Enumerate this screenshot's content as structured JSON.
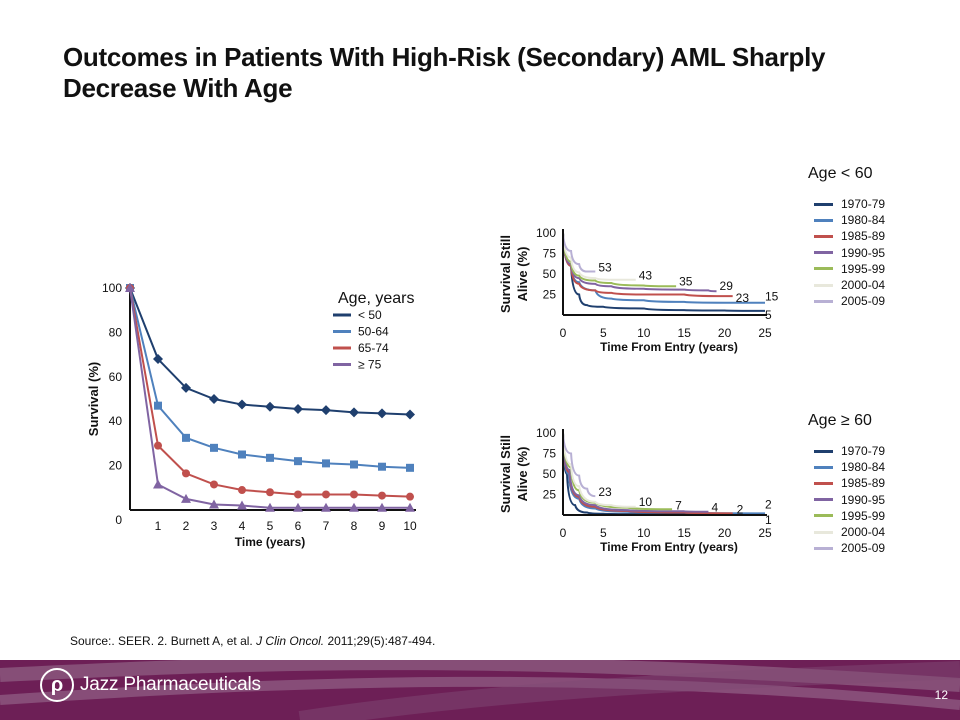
{
  "title": "Outcomes in Patients With High-Risk (Secondary) AML Sharply Decrease With Age",
  "source_prefix": "Source:. SEER. 2. Burnett A, et al. ",
  "source_journal": "J Clin Oncol.",
  "source_suffix": " 2011;29(5):487-494.",
  "footer": {
    "company": "Jazz Pharmaceuticals",
    "page_number": "12",
    "brand_color": "#6d1f56"
  },
  "chart_data": [
    {
      "id": "by-age",
      "type": "line",
      "title": "",
      "xlabel": "Time (years)",
      "ylabel": "Survival (%)",
      "legend_title": "Age, years",
      "legend_position": "top-right",
      "x": [
        0,
        1,
        2,
        3,
        4,
        5,
        6,
        7,
        8,
        9,
        10
      ],
      "x_ticks": [
        "1",
        "2",
        "3",
        "4",
        "5",
        "6",
        "7",
        "8",
        "9",
        "10"
      ],
      "y_ticks": [
        "0",
        "20",
        "40",
        "60",
        "80",
        "100"
      ],
      "xlim": [
        0,
        10
      ],
      "ylim": [
        0,
        100
      ],
      "series": [
        {
          "name": "< 50",
          "color": "#1f3f6e",
          "marker": "diamond",
          "values": [
            100,
            68,
            55,
            50,
            47.5,
            46.5,
            45.5,
            45,
            44,
            43.5,
            43
          ]
        },
        {
          "name": "50-64",
          "color": "#4f81bd",
          "marker": "square",
          "values": [
            100,
            47,
            32.5,
            28,
            25,
            23.5,
            22,
            21,
            20.5,
            19.5,
            19
          ]
        },
        {
          "name": "65-74",
          "color": "#c0504d",
          "marker": "circle",
          "values": [
            100,
            29,
            16.5,
            11.5,
            9,
            8,
            7,
            7,
            7,
            6.5,
            6
          ]
        },
        {
          "name": "≥ 75",
          "color": "#8064a2",
          "marker": "triangle",
          "values": [
            100,
            11.5,
            5,
            2.5,
            2,
            1,
            1,
            1,
            1,
            1,
            1
          ]
        }
      ]
    },
    {
      "id": "age-under-60",
      "type": "line",
      "legend_title": "Age < 60",
      "legend_position": "right",
      "xlabel": "Time From Entry (years)",
      "ylabel": "Survival Still Alive (%)",
      "x_ticks": [
        "0",
        "5",
        "10",
        "15",
        "20",
        "25"
      ],
      "y_ticks": [
        "25",
        "50",
        "75",
        "100"
      ],
      "xlim": [
        0,
        25
      ],
      "ylim": [
        0,
        100
      ],
      "series": [
        {
          "name": "1970-79",
          "color": "#1f3f6e",
          "end_label": "5",
          "points": [
            [
              0,
              100
            ],
            [
              1,
              60
            ],
            [
              2,
              25
            ],
            [
              3,
              12
            ],
            [
              5,
              10
            ],
            [
              10,
              8
            ],
            [
              15,
              6
            ],
            [
              20,
              5.5
            ],
            [
              25,
              5
            ]
          ]
        },
        {
          "name": "1980-84",
          "color": "#4f81bd",
          "end_label": "15",
          "points": [
            [
              0,
              100
            ],
            [
              1,
              60
            ],
            [
              2,
              40
            ],
            [
              4,
              30
            ],
            [
              6,
              20
            ],
            [
              10,
              18
            ],
            [
              15,
              16
            ],
            [
              20,
              15
            ],
            [
              25,
              15
            ]
          ]
        },
        {
          "name": "1985-89",
          "color": "#c0504d",
          "end_label": "23",
          "points": [
            [
              0,
              100
            ],
            [
              1,
              60
            ],
            [
              2,
              38
            ],
            [
              4,
              30
            ],
            [
              6,
              27
            ],
            [
              10,
              25
            ],
            [
              15,
              25
            ],
            [
              20,
              23
            ],
            [
              21,
              23
            ]
          ]
        },
        {
          "name": "1990-95",
          "color": "#8064a2",
          "end_label": "29",
          "points": [
            [
              0,
              100
            ],
            [
              1,
              62
            ],
            [
              2,
              45
            ],
            [
              4,
              38
            ],
            [
              6,
              35
            ],
            [
              10,
              32
            ],
            [
              15,
              31
            ],
            [
              18,
              30
            ],
            [
              19,
              29
            ]
          ]
        },
        {
          "name": "1995-99",
          "color": "#9bbb59",
          "end_label": "35",
          "points": [
            [
              0,
              100
            ],
            [
              1,
              65
            ],
            [
              2,
              48
            ],
            [
              4,
              42
            ],
            [
              6,
              39
            ],
            [
              10,
              36
            ],
            [
              14,
              35
            ]
          ]
        },
        {
          "name": "2000-04",
          "color": "#e8e8dc",
          "end_label": "43",
          "points": [
            [
              0,
              100
            ],
            [
              1,
              70
            ],
            [
              2,
              52
            ],
            [
              4,
              45
            ],
            [
              6,
              43
            ],
            [
              9,
              43
            ]
          ]
        },
        {
          "name": "2005-09",
          "color": "#b8b0d4",
          "end_label": "53",
          "points": [
            [
              0,
              100
            ],
            [
              1,
              78
            ],
            [
              2,
              62
            ],
            [
              3,
              53
            ],
            [
              4,
              53
            ]
          ]
        }
      ]
    },
    {
      "id": "age-60-plus",
      "type": "line",
      "legend_title": "Age ≥ 60",
      "legend_position": "right",
      "xlabel": "Time From Entry (years)",
      "ylabel": "Survival Still Alive (%)",
      "x_ticks": [
        "0",
        "5",
        "10",
        "15",
        "20",
        "25"
      ],
      "y_ticks": [
        "25",
        "50",
        "75",
        "100"
      ],
      "xlim": [
        0,
        25
      ],
      "ylim": [
        0,
        100
      ],
      "series": [
        {
          "name": "1970-79",
          "color": "#1f3f6e",
          "end_label": "1",
          "points": [
            [
              0,
              100
            ],
            [
              0.5,
              50
            ],
            [
              1.5,
              12
            ],
            [
              3,
              3
            ],
            [
              5,
              1.5
            ],
            [
              10,
              1
            ],
            [
              25,
              1
            ]
          ]
        },
        {
          "name": "1980-84",
          "color": "#4f81bd",
          "end_label": "2",
          "points": [
            [
              0,
              100
            ],
            [
              0.7,
              50
            ],
            [
              2,
              20
            ],
            [
              4,
              8
            ],
            [
              8,
              4
            ],
            [
              15,
              3
            ],
            [
              25,
              2
            ]
          ]
        },
        {
          "name": "1985-89",
          "color": "#c0504d",
          "end_label": "2",
          "points": [
            [
              0,
              100
            ],
            [
              0.8,
              52
            ],
            [
              2,
              22
            ],
            [
              4,
              10
            ],
            [
              8,
              5
            ],
            [
              15,
              3
            ],
            [
              21,
              2
            ]
          ]
        },
        {
          "name": "1990-95",
          "color": "#8064a2",
          "end_label": "4",
          "points": [
            [
              0,
              100
            ],
            [
              0.8,
              55
            ],
            [
              2,
              24
            ],
            [
              4,
              12
            ],
            [
              8,
              6
            ],
            [
              15,
              4.5
            ],
            [
              18,
              4
            ]
          ]
        },
        {
          "name": "1995-99",
          "color": "#9bbb59",
          "end_label": "7",
          "points": [
            [
              0,
              100
            ],
            [
              1,
              58
            ],
            [
              2,
              30
            ],
            [
              4,
              15
            ],
            [
              8,
              9
            ],
            [
              13.5,
              7
            ]
          ]
        },
        {
          "name": "2000-04",
          "color": "#e8e8dc",
          "end_label": "10",
          "points": [
            [
              0,
              100
            ],
            [
              1,
              62
            ],
            [
              2,
              35
            ],
            [
              4,
              16
            ],
            [
              6,
              12
            ],
            [
              9,
              10
            ]
          ]
        },
        {
          "name": "2005-09",
          "color": "#b8b0d4",
          "end_label": "23",
          "points": [
            [
              0,
              100
            ],
            [
              1,
              75
            ],
            [
              2,
              48
            ],
            [
              3,
              32
            ],
            [
              4,
              23
            ]
          ]
        }
      ]
    }
  ]
}
